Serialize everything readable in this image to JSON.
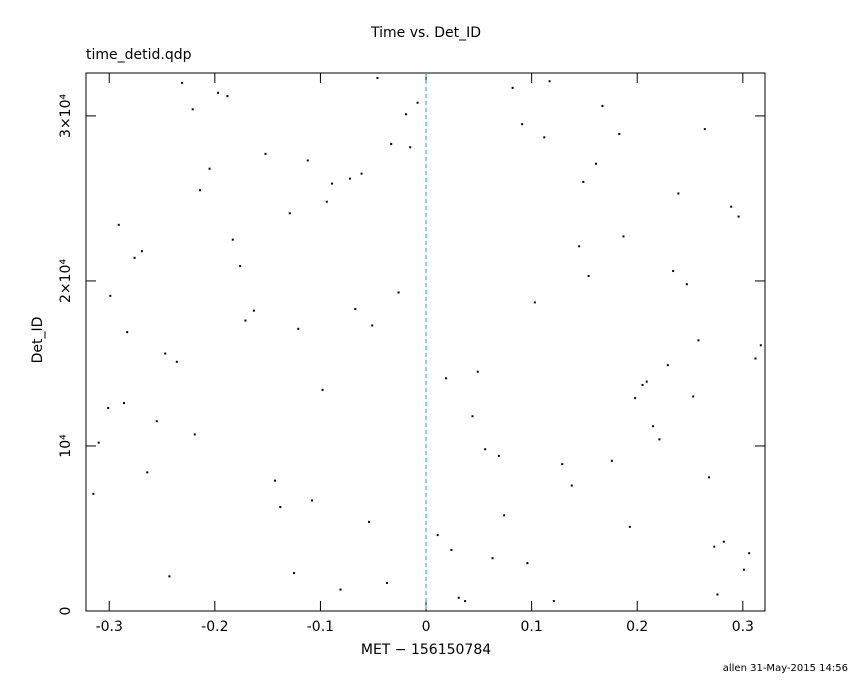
{
  "chart_data": {
    "type": "scatter",
    "title": "Time vs. Det_ID",
    "subtitle": "time_detid.qdp",
    "xlabel": "MET − 156150784",
    "ylabel": "Det_ID",
    "footer": "allen 31-May-2015 14:56",
    "xlim": [
      -0.322,
      0.321
    ],
    "ylim": [
      0,
      32600
    ],
    "xticks": [
      -0.3,
      -0.2,
      -0.1,
      0,
      0.1,
      0.2,
      0.3
    ],
    "yticks": [
      0,
      {
        "value": 10000,
        "label": "10⁴"
      },
      {
        "value": 20000,
        "label": "2×10⁴"
      },
      {
        "value": 30000,
        "label": "3×10⁴"
      }
    ],
    "vline": 0,
    "vline_color": "#2aa0c0",
    "x": [
      -0.301,
      0.112,
      -0.054,
      0.247,
      -0.188,
      0.031,
      0.289,
      -0.247,
      0.176,
      -0.112,
      0.063,
      -0.276,
      0.205,
      -0.019,
      0.138,
      -0.163,
      0.301,
      -0.089,
      0.044,
      -0.231,
      0.258,
      -0.138,
      0.091,
      -0.31,
      0.187,
      -0.037,
      0.229,
      -0.205,
      0.011,
      0.154,
      -0.264,
      0.082,
      -0.121,
      0.273,
      -0.072,
      0.198,
      -0.291,
      0.121,
      -0.015,
      0.312,
      -0.176,
      0.056,
      -0.243,
      0.167,
      -0.098,
      0.239,
      -0.315,
      0.103,
      -0.046,
      0.282,
      -0.152,
      0.019,
      -0.219,
      0.145,
      -0.081,
      0.264,
      -0.283,
      0.074,
      -0.129,
      0.215,
      -0.026,
      0.306,
      -0.197,
      0.129,
      -0.061,
      0.253,
      -0.269,
      0.037,
      -0.171,
      0.183,
      -0.108,
      0.296,
      -0.236,
      0.096,
      -0.008,
      0.221,
      -0.299,
      0.161,
      -0.143,
      0.049,
      -0.214,
      0.276,
      -0.067,
      0.117,
      -0.255,
      0.193,
      -0.033,
      0.317,
      -0.183,
      0.069,
      -0.125,
      0.234,
      -0.286,
      0.149,
      -0.051,
      0.268,
      -0.221,
      0.024,
      -0.094,
      0.209
    ],
    "series": [
      {
        "color": "#000000",
        "values": [
          12300,
          28700,
          5400,
          19800,
          31200,
          800,
          24500,
          15600,
          9100,
          27300,
          3200,
          21400,
          13700,
          30100,
          7600,
          18200,
          2500,
          25900,
          11800,
          32000,
          16400,
          6300,
          29500,
          10200,
          22700,
          1700,
          14900,
          26800,
          4600,
          20300,
          8400,
          31700,
          17100,
          3900,
          26200,
          12900,
          23400,
          600,
          28100,
          15300,
          20900,
          9800,
          2100,
          30600,
          13400,
          25300,
          7100,
          18700,
          32300,
          4200,
          27700,
          14100,
          10700,
          22100,
          1300,
          29200,
          16900,
          5800,
          24100,
          11200,
          19300,
          3500,
          31400,
          8900,
          26500,
          13000,
          21800,
          600,
          17600,
          28900,
          6700,
          23900,
          15100,
          2900,
          30800,
          10400,
          19100,
          27100,
          7900,
          14500,
          25500,
          1000,
          18300,
          32100,
          11500,
          5100,
          28300,
          16100,
          22500,
          9400,
          2300,
          20600,
          12600,
          26000,
          17300,
          8100,
          30400,
          3700,
          24800,
          13900
        ]
      }
    ]
  }
}
